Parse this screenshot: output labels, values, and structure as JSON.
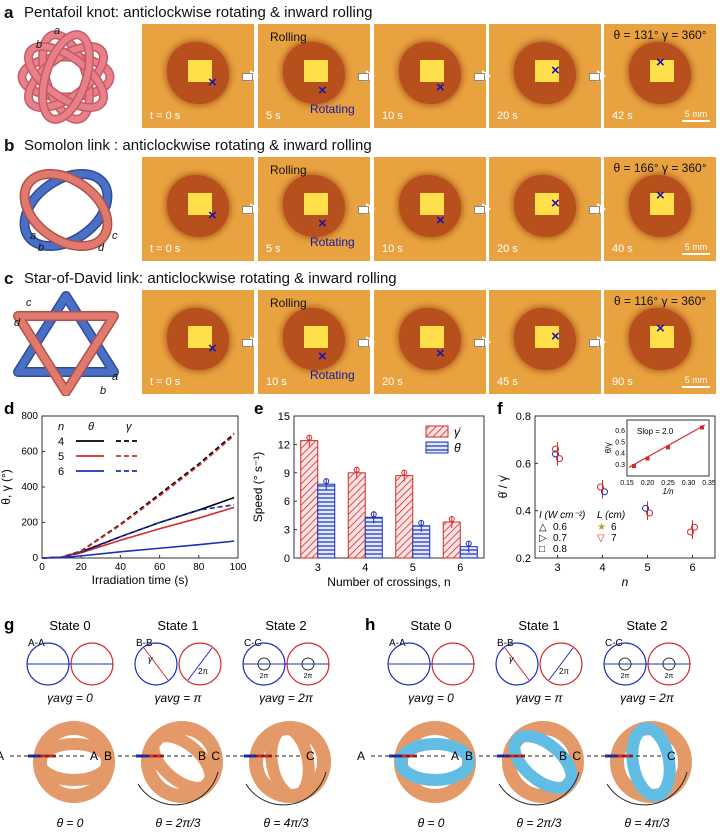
{
  "panels": {
    "a": {
      "letter": "a",
      "title": "Pentafoil knot: anticlockwise rotating & inward rolling",
      "knot_labels": [
        "a",
        "b"
      ],
      "frames": [
        {
          "t": "t = 0 s"
        },
        {
          "t": "5 s"
        },
        {
          "t": "10 s"
        },
        {
          "t": "20 s"
        },
        {
          "t": "42 s"
        }
      ],
      "ann_rolling": "Rolling",
      "ann_rotating": "Rotating",
      "angles": "θ = 131°  γ = 360°",
      "scale": "5 mm"
    },
    "b": {
      "letter": "b",
      "title": "Somolon link : anticlockwise rotating & inward rolling",
      "knot_labels": [
        "a",
        "b",
        "c",
        "d"
      ],
      "frames": [
        {
          "t": "t = 0 s"
        },
        {
          "t": "5 s"
        },
        {
          "t": "10 s"
        },
        {
          "t": "20 s"
        },
        {
          "t": "40 s"
        }
      ],
      "ann_rolling": "Rolling",
      "ann_rotating": "Rotating",
      "angles": "θ = 166°  γ = 360°",
      "scale": "5 mm"
    },
    "c": {
      "letter": "c",
      "title": "Star-of-David link:  anticlockwise rotating & inward rolling",
      "knot_labels": [
        "c",
        "d",
        "a",
        "b"
      ],
      "frames": [
        {
          "t": "t = 0 s"
        },
        {
          "t": "10 s"
        },
        {
          "t": "20 s"
        },
        {
          "t": "45 s"
        },
        {
          "t": "90 s"
        }
      ],
      "ann_rolling": "Rolling",
      "ann_rotating": "Rotating",
      "angles": "θ = 116°  γ = 360°",
      "scale": "5 mm"
    }
  },
  "chart_data": [
    {
      "panel": "d",
      "type": "line",
      "xlabel": "Irradiation time (s)",
      "ylabel": "θ, γ (°)",
      "xlim": [
        0,
        100
      ],
      "ylim": [
        0,
        800
      ],
      "xticks": [
        0,
        20,
        40,
        60,
        80,
        100
      ],
      "yticks": [
        0,
        200,
        400,
        600,
        800
      ],
      "legend_header": {
        "n": "n",
        "theta": "θ",
        "gamma": "γ"
      },
      "series": [
        {
          "n": "4",
          "color": "#000000",
          "theta": [
            [
              0,
              0
            ],
            [
              10,
              5
            ],
            [
              20,
              35
            ],
            [
              40,
              120
            ],
            [
              60,
              200
            ],
            [
              80,
              270
            ],
            [
              98,
              340
            ]
          ],
          "gamma": [
            [
              0,
              0
            ],
            [
              10,
              5
            ],
            [
              20,
              40
            ],
            [
              40,
              190
            ],
            [
              60,
              360
            ],
            [
              80,
              530
            ],
            [
              98,
              700
            ]
          ]
        },
        {
          "n": "5",
          "color": "#d42a2a",
          "theta": [
            [
              0,
              0
            ],
            [
              10,
              5
            ],
            [
              20,
              30
            ],
            [
              40,
              100
            ],
            [
              60,
              165
            ],
            [
              80,
              225
            ],
            [
              98,
              285
            ]
          ],
          "gamma": [
            [
              0,
              0
            ],
            [
              10,
              5
            ],
            [
              20,
              38
            ],
            [
              40,
              185
            ],
            [
              60,
              350
            ],
            [
              80,
              520
            ],
            [
              98,
              690
            ]
          ]
        },
        {
          "n": "6",
          "color": "#1a2fb8",
          "theta": [
            [
              0,
              0
            ],
            [
              10,
              2
            ],
            [
              20,
              12
            ],
            [
              40,
              35
            ],
            [
              60,
              55
            ],
            [
              80,
              75
            ],
            [
              98,
              95
            ]
          ],
          "gamma": [
            [
              0,
              0
            ],
            [
              10,
              4
            ],
            [
              20,
              30
            ],
            [
              40,
              120
            ],
            [
              60,
              200
            ],
            [
              80,
              270
            ],
            [
              98,
              300
            ]
          ]
        }
      ]
    },
    {
      "panel": "e",
      "type": "bar",
      "xlabel": "Number of crossings, n",
      "ylabel": "Speed (° s⁻¹)",
      "categories": [
        "3",
        "4",
        "5",
        "6"
      ],
      "ylim": [
        0,
        15
      ],
      "yticks": [
        0,
        3,
        6,
        9,
        12,
        15
      ],
      "series": [
        {
          "name": "γ̇",
          "color": "#d42a2a",
          "values": [
            12.4,
            9.0,
            8.7,
            3.8
          ]
        },
        {
          "name": "θ̇",
          "color": "#1a2fb8",
          "values": [
            7.8,
            4.3,
            3.4,
            1.2
          ]
        }
      ]
    },
    {
      "panel": "f",
      "type": "scatter",
      "xlabel": "n",
      "ylabel": "θ̇ / γ̇",
      "xlim": [
        2.5,
        6.5
      ],
      "ylim": [
        0.2,
        0.8
      ],
      "xticks": [
        3,
        4,
        5,
        6
      ],
      "yticks": [
        0.2,
        0.4,
        0.6,
        0.8
      ],
      "points": [
        {
          "x": 3,
          "y": 0.64
        },
        {
          "x": 3,
          "y": 0.62
        },
        {
          "x": 3,
          "y": 0.66
        },
        {
          "x": 4,
          "y": 0.48
        },
        {
          "x": 4,
          "y": 0.5
        },
        {
          "x": 5,
          "y": 0.39
        },
        {
          "x": 5,
          "y": 0.41
        },
        {
          "x": 6,
          "y": 0.33
        },
        {
          "x": 6,
          "y": 0.31
        }
      ],
      "legend_I": {
        "title": "I (W cm⁻²)",
        "items": [
          "0.6",
          "0.7",
          "0.8"
        ]
      },
      "legend_L": {
        "title": "L (cm)",
        "items": [
          "6",
          "7"
        ]
      },
      "inset": {
        "xlabel": "1/n",
        "ylabel": "θ̇/γ̇",
        "slope": "Slop = 2.0",
        "xticks": [
          "0.15",
          "0.20",
          "0.25",
          "0.30",
          "0.35"
        ],
        "yticks": [
          "0.3",
          "0.4",
          "0.5",
          "0.6"
        ],
        "points": [
          {
            "x": 0.167,
            "y": 0.33
          },
          {
            "x": 0.2,
            "y": 0.39
          },
          {
            "x": 0.25,
            "y": 0.48
          },
          {
            "x": 0.333,
            "y": 0.64
          }
        ]
      }
    }
  ],
  "panel_labels": {
    "d": "d",
    "e": "e",
    "f": "f",
    "g": "g",
    "h": "h"
  },
  "gh": {
    "states": [
      "State 0",
      "State 1",
      "State 2"
    ],
    "sections": [
      "A-A",
      "B-B",
      "C-C"
    ],
    "gamma": [
      "γavg = 0",
      "γavg = π",
      "γavg = 2π"
    ],
    "thetas": [
      "θ = 0",
      "θ = 2π/3",
      "θ = 4π/3"
    ],
    "thetas_h": [
      "θ = 0",
      "θ = 2π/3",
      "θ = 4π/3"
    ],
    "pair_labels": [
      [
        "A",
        "A"
      ],
      [
        "B",
        "B"
      ],
      [
        "C",
        "C"
      ]
    ],
    "mini": {
      "gamma": "γ",
      "two_pi": "2π"
    }
  }
}
